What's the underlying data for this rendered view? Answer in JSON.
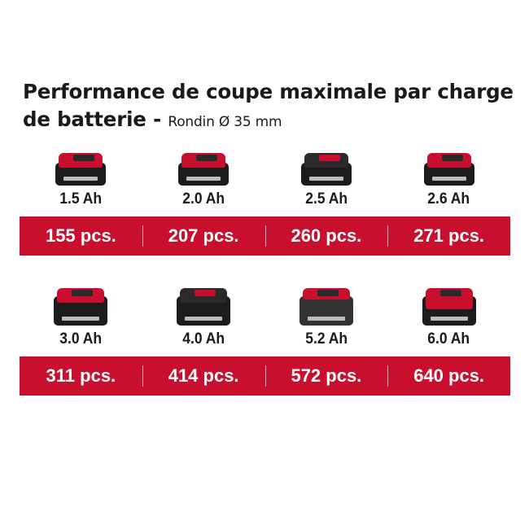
{
  "title": "Performance de coupe maximale par charge de batterie -",
  "subtitle": "Rondin Ø 35 mm",
  "accent_color": "#c8102e",
  "rows": [
    {
      "batteries": [
        {
          "capacity": "1.5 Ah",
          "pieces": "155 pcs."
        },
        {
          "capacity": "2.0 Ah",
          "pieces": "207 pcs."
        },
        {
          "capacity": "2.5 Ah",
          "pieces": "260 pcs."
        },
        {
          "capacity": "2.6 Ah",
          "pieces": "271 pcs."
        }
      ]
    },
    {
      "batteries": [
        {
          "capacity": "3.0 Ah",
          "pieces": "311 pcs."
        },
        {
          "capacity": "4.0 Ah",
          "pieces": "414 pcs."
        },
        {
          "capacity": "5.2 Ah",
          "pieces": "572 pcs."
        },
        {
          "capacity": "6.0 Ah",
          "pieces": "640 pcs."
        }
      ]
    }
  ]
}
